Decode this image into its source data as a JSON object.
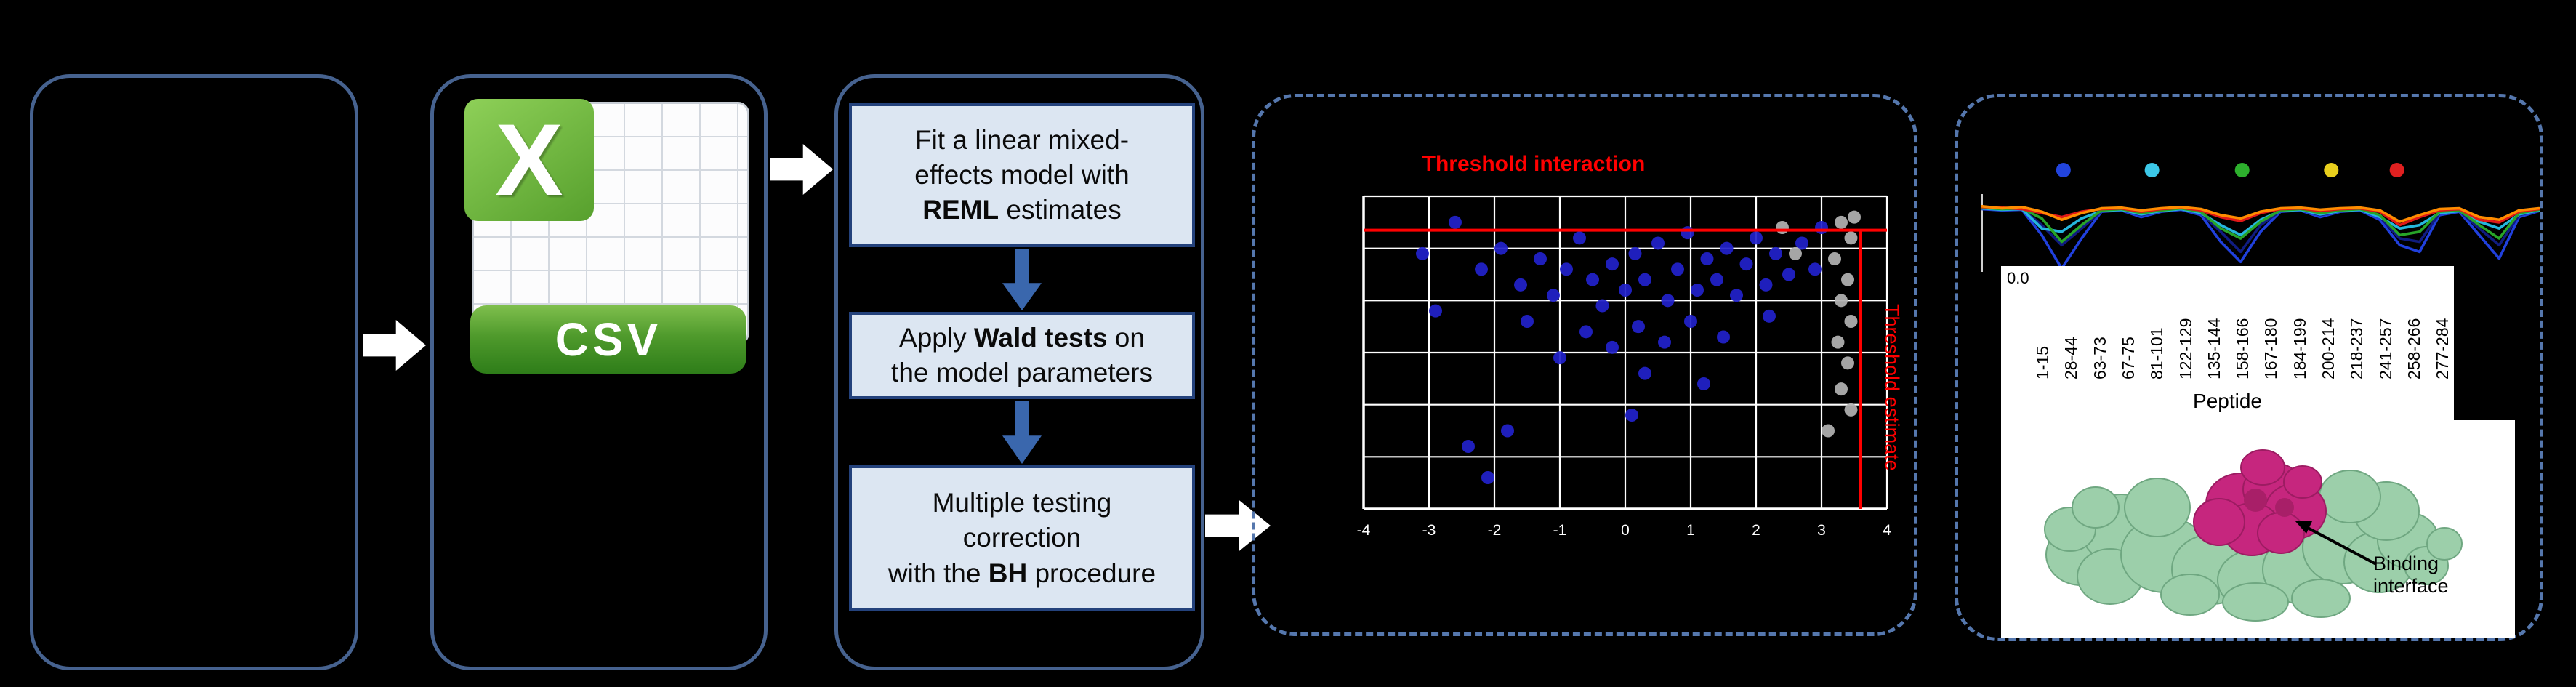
{
  "colors": {
    "background": "#000000",
    "panel_border": "#46628f",
    "dashed_border": "#5577ad",
    "process_fill": "#dce6f2",
    "process_border": "#24427c",
    "flow_arrow": "#ffffff",
    "down_arrow": "#3a67ad"
  },
  "flow": {
    "csv_icon": {
      "x_label": "X",
      "label": "CSV"
    },
    "process": {
      "box1": {
        "l1": "Fit a linear mixed-",
        "l2": "effects model with",
        "l3_bold": "REML",
        "l3_rest": " estimates"
      },
      "box2": {
        "l1a": "Apply ",
        "l1_bold": "Wald tests",
        "l1b": " on",
        "l2": "the model parameters"
      },
      "box3": {
        "l1": "Multiple testing",
        "l2": "correction",
        "l3a": "with the ",
        "l3_bold": "BH",
        "l3b": " procedure"
      }
    }
  },
  "results": {
    "protein_annotation": "Binding interface"
  },
  "chart_data": [
    {
      "id": "interaction-plot",
      "type": "scatter",
      "title": "",
      "xlim": [
        -4,
        4
      ],
      "ylim": [
        0,
        6
      ],
      "x_ticks": [
        -4,
        -3,
        -2,
        -1,
        0,
        1,
        2,
        3,
        4
      ],
      "y_gridlines": [
        0,
        1,
        2,
        3,
        4,
        5,
        6
      ],
      "grid": true,
      "threshold_color": "#ff0000",
      "hline": {
        "y": 5.35,
        "label": "Threshold interaction"
      },
      "vline": {
        "x": 3.6,
        "label": "Threshold estimate"
      },
      "series": [
        {
          "name": "points_blue",
          "color": "#2222cc",
          "points": [
            [
              -3.1,
              4.9
            ],
            [
              -2.6,
              5.5
            ],
            [
              -2.9,
              3.8
            ],
            [
              -2.2,
              4.6
            ],
            [
              -1.9,
              5.0
            ],
            [
              -1.6,
              4.3
            ],
            [
              -1.5,
              3.6
            ],
            [
              -1.3,
              4.8
            ],
            [
              -1.1,
              4.1
            ],
            [
              -0.9,
              4.6
            ],
            [
              -0.7,
              5.2
            ],
            [
              -0.5,
              4.4
            ],
            [
              -0.35,
              3.9
            ],
            [
              -0.2,
              4.7
            ],
            [
              -0.2,
              3.1
            ],
            [
              0.0,
              4.2
            ],
            [
              0.15,
              4.9
            ],
            [
              0.2,
              3.5
            ],
            [
              0.3,
              4.4
            ],
            [
              0.3,
              2.6
            ],
            [
              0.5,
              5.1
            ],
            [
              0.6,
              3.2
            ],
            [
              0.65,
              4.0
            ],
            [
              0.8,
              4.6
            ],
            [
              0.95,
              5.3
            ],
            [
              1.0,
              3.6
            ],
            [
              1.1,
              4.2
            ],
            [
              1.2,
              2.4
            ],
            [
              1.25,
              4.8
            ],
            [
              1.4,
              4.4
            ],
            [
              1.5,
              3.3
            ],
            [
              1.55,
              5.0
            ],
            [
              1.7,
              4.1
            ],
            [
              1.85,
              4.7
            ],
            [
              2.0,
              5.2
            ],
            [
              2.15,
              4.3
            ],
            [
              2.2,
              3.7
            ],
            [
              2.3,
              4.9
            ],
            [
              2.5,
              4.5
            ],
            [
              2.7,
              5.1
            ],
            [
              2.9,
              4.6
            ],
            [
              3.0,
              5.4
            ],
            [
              -0.6,
              3.4
            ],
            [
              -1.0,
              2.9
            ],
            [
              -2.4,
              1.2
            ],
            [
              -2.1,
              0.6
            ],
            [
              -1.8,
              1.5
            ],
            [
              0.1,
              1.8
            ]
          ]
        },
        {
          "name": "points_grey",
          "color": "#b3b3b3",
          "points": [
            [
              3.3,
              5.5
            ],
            [
              3.45,
              5.2
            ],
            [
              3.2,
              4.8
            ],
            [
              3.4,
              4.4
            ],
            [
              3.3,
              4.0
            ],
            [
              3.45,
              3.6
            ],
            [
              3.25,
              3.2
            ],
            [
              3.4,
              2.8
            ],
            [
              3.3,
              2.3
            ],
            [
              3.45,
              1.9
            ],
            [
              3.1,
              1.5
            ],
            [
              3.5,
              5.6
            ],
            [
              2.6,
              4.9
            ],
            [
              2.4,
              5.4
            ]
          ]
        }
      ]
    },
    {
      "id": "deuteration-profiles",
      "type": "line",
      "x_count": 29,
      "ylim": [
        -1,
        0.1
      ],
      "y_tick_label": "0.0",
      "xlabel": "Peptide",
      "x_tick_labels": [
        "1-15",
        "28-44",
        "63-73",
        "67-75",
        "81-101",
        "122-129",
        "135-144",
        "158-166",
        "167-180",
        "184-199",
        "200-214",
        "218-237",
        "241-257",
        "258-266",
        "277-284"
      ],
      "marker_dots": {
        "colors": [
          "#2244dd",
          "#3cc8e8",
          "#2db02d",
          "#e8cf1d",
          "#e02020"
        ],
        "positions": [
          0.146,
          0.305,
          0.467,
          0.627,
          0.745
        ]
      },
      "series": [
        {
          "name": "blue",
          "color": "#2040dd",
          "values": [
            -0.06,
            -0.08,
            -0.07,
            -0.45,
            -0.95,
            -0.5,
            -0.1,
            -0.08,
            -0.18,
            -0.1,
            -0.07,
            -0.15,
            -0.55,
            -0.85,
            -0.4,
            -0.1,
            -0.08,
            -0.18,
            -0.1,
            -0.08,
            -0.22,
            -0.6,
            -0.7,
            -0.15,
            -0.1,
            -0.45,
            -0.8,
            -0.18,
            -0.09
          ]
        },
        {
          "name": "navy",
          "color": "#101c80",
          "values": [
            -0.05,
            -0.07,
            -0.06,
            -0.3,
            -0.6,
            -0.35,
            -0.09,
            -0.07,
            -0.15,
            -0.09,
            -0.06,
            -0.12,
            -0.4,
            -0.7,
            -0.3,
            -0.09,
            -0.07,
            -0.15,
            -0.09,
            -0.07,
            -0.18,
            -0.5,
            -0.55,
            -0.12,
            -0.09,
            -0.35,
            -0.6,
            -0.15,
            -0.08
          ]
        },
        {
          "name": "cyan",
          "color": "#25b6dd",
          "values": [
            -0.05,
            -0.07,
            -0.06,
            -0.35,
            -0.4,
            -0.2,
            -0.09,
            -0.07,
            -0.14,
            -0.09,
            -0.06,
            -0.12,
            -0.3,
            -0.45,
            -0.22,
            -0.09,
            -0.07,
            -0.14,
            -0.09,
            -0.07,
            -0.18,
            -0.35,
            -0.3,
            -0.12,
            -0.09,
            -0.25,
            -0.35,
            -0.14,
            -0.08
          ]
        },
        {
          "name": "green",
          "color": "#28a428",
          "values": [
            -0.04,
            -0.06,
            -0.05,
            -0.2,
            -0.55,
            -0.3,
            -0.08,
            -0.06,
            -0.12,
            -0.08,
            -0.05,
            -0.1,
            -0.35,
            -0.5,
            -0.25,
            -0.08,
            -0.06,
            -0.12,
            -0.08,
            -0.06,
            -0.15,
            -0.45,
            -0.4,
            -0.1,
            -0.08,
            -0.3,
            -0.5,
            -0.12,
            -0.07
          ]
        },
        {
          "name": "red",
          "color": "#e01818",
          "values": [
            -0.03,
            -0.04,
            -0.06,
            -0.12,
            -0.18,
            -0.1,
            -0.06,
            -0.05,
            -0.1,
            -0.06,
            -0.04,
            -0.08,
            -0.18,
            -0.24,
            -0.12,
            -0.06,
            -0.05,
            -0.09,
            -0.06,
            -0.05,
            -0.1,
            -0.3,
            -0.18,
            -0.08,
            -0.06,
            -0.22,
            -0.26,
            -0.1,
            -0.06
          ]
        },
        {
          "name": "orange",
          "color": "#ff8c00",
          "values": [
            -0.02,
            -0.05,
            -0.03,
            -0.1,
            -0.22,
            -0.12,
            -0.05,
            -0.04,
            -0.08,
            -0.05,
            -0.03,
            -0.06,
            -0.15,
            -0.2,
            -0.1,
            -0.05,
            -0.04,
            -0.07,
            -0.05,
            -0.04,
            -0.08,
            -0.25,
            -0.15,
            -0.06,
            -0.05,
            -0.18,
            -0.22,
            -0.08,
            -0.05
          ]
        }
      ]
    }
  ]
}
